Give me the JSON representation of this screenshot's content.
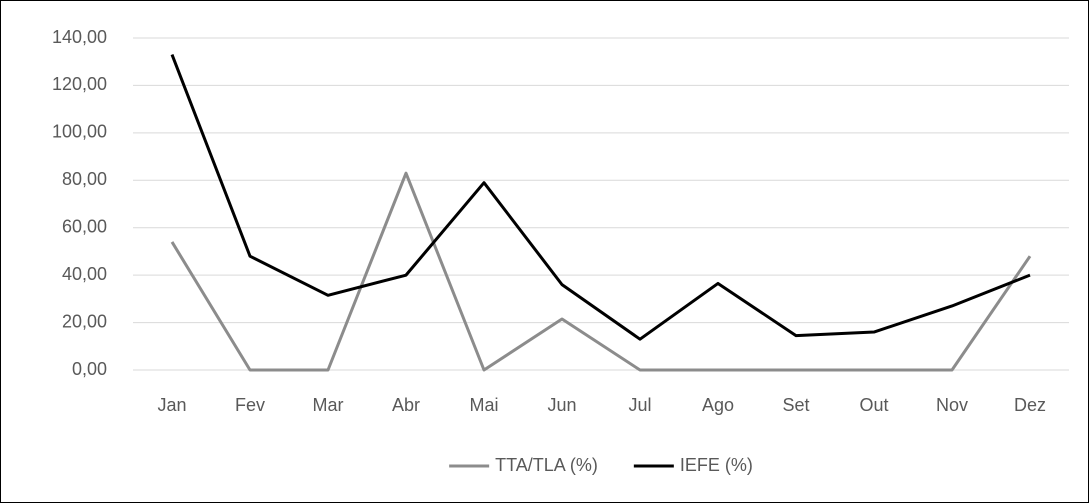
{
  "chart_data": {
    "type": "line",
    "categories": [
      "Jan",
      "Fev",
      "Mar",
      "Abr",
      "Mai",
      "Jun",
      "Jul",
      "Ago",
      "Set",
      "Out",
      "Nov",
      "Dez"
    ],
    "series": [
      {
        "name": "TTA/TLA (%)",
        "color": "#8c8c8c",
        "values": [
          54,
          0,
          0,
          83,
          0,
          21.5,
          0,
          0,
          0,
          0,
          0,
          48
        ]
      },
      {
        "name": "IEFE (%)",
        "color": "#000000",
        "values": [
          133,
          48,
          31.5,
          40,
          79,
          36,
          13,
          36.5,
          14.5,
          16,
          27,
          40
        ]
      }
    ],
    "ylim": [
      0,
      140
    ],
    "yticks": [
      {
        "value": 0,
        "label": "0,00"
      },
      {
        "value": 20,
        "label": "20,00"
      },
      {
        "value": 40,
        "label": "40,00"
      },
      {
        "value": 60,
        "label": "60,00"
      },
      {
        "value": 80,
        "label": "80,00"
      },
      {
        "value": 100,
        "label": "100,00"
      },
      {
        "value": 120,
        "label": "120,00"
      },
      {
        "value": 140,
        "label": "140,00"
      }
    ],
    "grid": true,
    "legend": "bottom"
  }
}
